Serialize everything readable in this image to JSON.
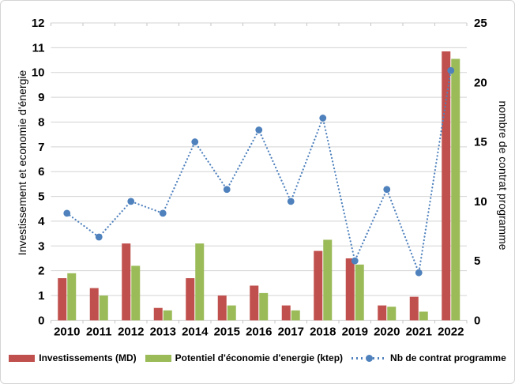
{
  "chart_data": {
    "type": "combo",
    "title": "",
    "categories": [
      "2010",
      "2011",
      "2012",
      "2013",
      "2014",
      "2015",
      "2016",
      "2017",
      "2018",
      "2019",
      "2020",
      "2021",
      "2022"
    ],
    "series": [
      {
        "name": "Investissements (MD)",
        "type": "bar",
        "axis": "left",
        "color": "#C0504D",
        "values": [
          1.7,
          1.3,
          3.1,
          0.5,
          1.7,
          1.0,
          1.4,
          0.6,
          2.8,
          2.5,
          0.6,
          0.95,
          10.85
        ]
      },
      {
        "name": "Potentiel d'économie d'energie (ktep)",
        "type": "bar",
        "axis": "left",
        "color": "#9BBB59",
        "values": [
          1.9,
          1.0,
          2.2,
          0.4,
          3.1,
          0.6,
          1.1,
          0.4,
          3.25,
          2.25,
          0.55,
          0.35,
          10.55
        ]
      },
      {
        "name": "Nb de contrat programme",
        "type": "line",
        "line_style": "dotted",
        "marker": "circle",
        "axis": "right",
        "color": "#4F81BD",
        "values": [
          9,
          7,
          10,
          9,
          15,
          11,
          16,
          10,
          17,
          5,
          11,
          4,
          21
        ]
      }
    ],
    "left_axis": {
      "title": "Investissement et economie d'énergie",
      "min": 0,
      "max": 12,
      "step": 1,
      "ticks": [
        0,
        1,
        2,
        3,
        4,
        5,
        6,
        7,
        8,
        9,
        10,
        11,
        12
      ]
    },
    "right_axis": {
      "title": "nombre de contrat programme",
      "min": 0,
      "max": 25,
      "step": 5,
      "ticks": [
        0,
        5,
        10,
        15,
        20,
        25
      ]
    },
    "grid": true,
    "legend_position": "bottom",
    "colors": {
      "grid": "#D3D3D3",
      "axis_line": "#C6C6C6",
      "text": "#000000",
      "background": "#FFFFFF",
      "border": "#D4D4D4"
    }
  }
}
